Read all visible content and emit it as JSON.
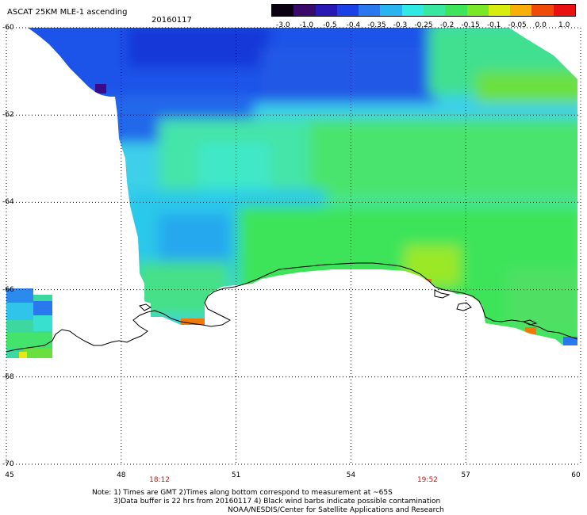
{
  "header": {
    "title": "ASCAT 25KM MLE-1 ascending",
    "date": "20160117"
  },
  "colorbar": {
    "colors": [
      "#0a0010",
      "#3a0a6a",
      "#2818b4",
      "#1a40e6",
      "#2a78ee",
      "#28b4ee",
      "#30e8e4",
      "#38e8a0",
      "#3ee45a",
      "#7ae828",
      "#d8ec10",
      "#f8b008",
      "#f04a08",
      "#e81010"
    ],
    "labels": [
      "-3.0",
      "-1.0",
      "-0.5",
      "-0.4",
      "-0.35",
      "-0.3",
      "-0.25",
      "-0.2",
      "-0.15",
      "-0.1",
      "-0.05",
      "0.0",
      "1.0"
    ]
  },
  "map": {
    "lat_labels": [
      "-60",
      "-62",
      "-64",
      "-66",
      "-68",
      "-70"
    ],
    "lon_labels": [
      "45",
      "48",
      "51",
      "54",
      "57",
      "60"
    ],
    "lat_range": [
      -70,
      -60
    ],
    "lon_range": [
      45,
      60
    ],
    "grid": "dotted",
    "time_labels": [
      {
        "lon": 49,
        "text": "18:12"
      },
      {
        "lon": 56,
        "text": "19:52"
      }
    ]
  },
  "footer": {
    "note_line1": "Note: 1) Times are GMT 2)Times along bottom correspond to measurement at ~65S",
    "note_line2": "3)Data buffer is 22 hrs from 20160117 4) Black wind barbs indicate possible contamination",
    "note_line3": "NOAA/NESDIS/Center for Satellite Applications and Research"
  }
}
